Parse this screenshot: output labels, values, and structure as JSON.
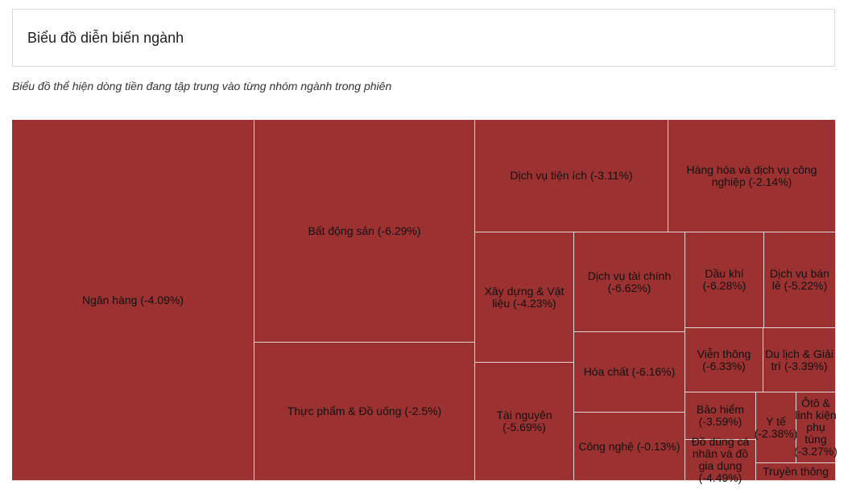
{
  "header": {
    "title": "Biểu đồ diễn biến ngành"
  },
  "subtitle": "Biểu đồ thể hiện dòng tiền đang tập trung vào từng nhóm ngành trong phiên",
  "colors": {
    "negative": "#9b3130",
    "border": "#e8d6d6"
  },
  "chart_data": {
    "type": "treemap",
    "title": "",
    "items": [
      {
        "name": "Ngân hàng",
        "change_pct": -4.09,
        "label": "Ngân hàng (-4.09%)"
      },
      {
        "name": "Bất động sản",
        "change_pct": -6.29,
        "label": "Bất động sản (-6.29%)"
      },
      {
        "name": "Thực phẩm & Đồ uống",
        "change_pct": -2.5,
        "label": "Thực phẩm & Đồ uống (-2.5%)"
      },
      {
        "name": "Dịch vụ tiện ích",
        "change_pct": -3.11,
        "label": "Dịch vụ tiện ích (-3.11%)"
      },
      {
        "name": "Hàng hóa và dịch vụ công nghiệp",
        "change_pct": -2.14,
        "label": "Hàng hóa và dịch vụ công nghiệp (-2.14%)"
      },
      {
        "name": "Xây dựng & Vật liệu",
        "change_pct": -4.23,
        "label": "Xây dựng & Vật liệu (-4.23%)"
      },
      {
        "name": "Tài nguyên",
        "change_pct": -5.69,
        "label": "Tài nguyên (-5.69%)"
      },
      {
        "name": "Dịch vụ tài chính",
        "change_pct": -6.62,
        "label": "Dịch vụ tài chính (-6.62%)"
      },
      {
        "name": "Hóa chất",
        "change_pct": -6.16,
        "label": "Hóa chất (-6.16%)"
      },
      {
        "name": "Công nghệ",
        "change_pct": -0.13,
        "label": "Công nghệ (-0.13%)"
      },
      {
        "name": "Dầu khí",
        "change_pct": -6.28,
        "label": "Dầu khí (-6.28%)"
      },
      {
        "name": "Dịch vụ bán lẻ",
        "change_pct": -5.22,
        "label": "Dịch vụ bán lẻ (-5.22%)"
      },
      {
        "name": "Viễn thông",
        "change_pct": -6.33,
        "label": "Viễn thông (-6.33%)"
      },
      {
        "name": "Du lịch & Giải trí",
        "change_pct": -3.39,
        "label": "Du lịch & Giải trí (-3.39%)"
      },
      {
        "name": "Bảo hiểm",
        "change_pct": -3.59,
        "label": "Bảo hiểm (-3.59%)"
      },
      {
        "name": "Y tế",
        "change_pct": -2.38,
        "label": "Y tế (-2.38%)"
      },
      {
        "name": "Ôtô & linh kiện phụ tùng",
        "change_pct": -3.27,
        "label": "Ôtô & linh kiện phụ tùng (-3.27%)"
      },
      {
        "name": "Đồ dùng cá nhân và đồ gia dụng",
        "change_pct": -4.49,
        "label": "Đồ dùng cá nhân và đồ gia dụng (-4.49%)"
      },
      {
        "name": "Truyền thông",
        "change_pct": null,
        "label": "Truyền thông"
      }
    ]
  }
}
